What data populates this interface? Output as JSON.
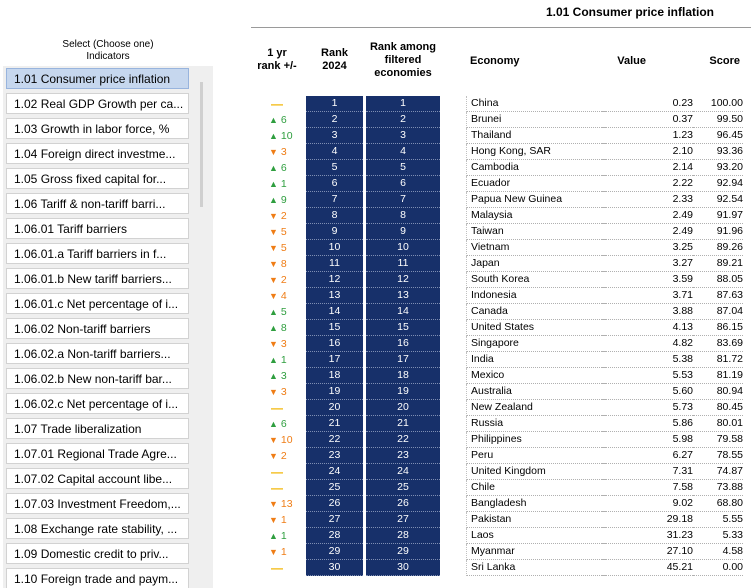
{
  "sidebar": {
    "title": "Select (Choose one)\nIndicators",
    "title_line1": "Select (Choose one)",
    "title_line2": "Indicators",
    "items": [
      {
        "label": "1.01 Consumer price inflation",
        "selected": true
      },
      {
        "label": "1.02 Real GDP Growth per ca..."
      },
      {
        "label": "1.03 Growth in labor force, %"
      },
      {
        "label": "1.04 Foreign direct investme..."
      },
      {
        "label": "1.05 Gross fixed capital for..."
      },
      {
        "label": "1.06 Tariff & non-tariff barri..."
      },
      {
        "label": "1.06.01 Tariff barriers"
      },
      {
        "label": "1.06.01.a Tariff barriers in f..."
      },
      {
        "label": "1.06.01.b New tariff barriers..."
      },
      {
        "label": "1.06.01.c Net percentage of i..."
      },
      {
        "label": "1.06.02 Non-tariff barriers"
      },
      {
        "label": "1.06.02.a Non-tariff barriers..."
      },
      {
        "label": "1.06.02.b New non-tariff bar..."
      },
      {
        "label": "1.06.02.c Net percentage of i..."
      },
      {
        "label": "1.07 Trade liberalization"
      },
      {
        "label": "1.07.01 Regional Trade Agre..."
      },
      {
        "label": "1.07.02 Capital account libe..."
      },
      {
        "label": "1.07.03 Investment Freedom,..."
      },
      {
        "label": "1.08 Exchange rate stability, ..."
      },
      {
        "label": "1.09 Domestic credit to priv..."
      },
      {
        "label": "1.10 Foreign trade and paym..."
      }
    ]
  },
  "table": {
    "title": "1.01 Consumer price inflation",
    "headers": {
      "change_l1": "1 yr",
      "change_l2": "rank +/-",
      "rank_l1": "Rank",
      "rank_l2": "2024",
      "rankf_l1": "Rank among",
      "rankf_l2": "filtered",
      "rankf_l3": "economies",
      "economy": "Economy",
      "value": "Value",
      "score": "Score"
    },
    "rows": [
      {
        "dir": "dash",
        "chg": "",
        "rank": "1",
        "rankf": "1",
        "economy": "China",
        "value": "0.23",
        "score": "100.00"
      },
      {
        "dir": "up",
        "chg": "6",
        "rank": "2",
        "rankf": "2",
        "economy": "Brunei",
        "value": "0.37",
        "score": "99.50"
      },
      {
        "dir": "up",
        "chg": "10",
        "rank": "3",
        "rankf": "3",
        "economy": "Thailand",
        "value": "1.23",
        "score": "96.45"
      },
      {
        "dir": "down",
        "chg": "3",
        "rank": "4",
        "rankf": "4",
        "economy": "Hong Kong, SAR",
        "value": "2.10",
        "score": "93.36"
      },
      {
        "dir": "up",
        "chg": "6",
        "rank": "5",
        "rankf": "5",
        "economy": "Cambodia",
        "value": "2.14",
        "score": "93.20"
      },
      {
        "dir": "up",
        "chg": "1",
        "rank": "6",
        "rankf": "6",
        "economy": "Ecuador",
        "value": "2.22",
        "score": "92.94"
      },
      {
        "dir": "up",
        "chg": "9",
        "rank": "7",
        "rankf": "7",
        "economy": "Papua New Guinea",
        "value": "2.33",
        "score": "92.54"
      },
      {
        "dir": "down",
        "chg": "2",
        "rank": "8",
        "rankf": "8",
        "economy": "Malaysia",
        "value": "2.49",
        "score": "91.97"
      },
      {
        "dir": "down",
        "chg": "5",
        "rank": "9",
        "rankf": "9",
        "economy": "Taiwan",
        "value": "2.49",
        "score": "91.96"
      },
      {
        "dir": "down",
        "chg": "5",
        "rank": "10",
        "rankf": "10",
        "economy": "Vietnam",
        "value": "3.25",
        "score": "89.26"
      },
      {
        "dir": "down",
        "chg": "8",
        "rank": "11",
        "rankf": "11",
        "economy": "Japan",
        "value": "3.27",
        "score": "89.21"
      },
      {
        "dir": "down",
        "chg": "2",
        "rank": "12",
        "rankf": "12",
        "economy": "South Korea",
        "value": "3.59",
        "score": "88.05"
      },
      {
        "dir": "down",
        "chg": "4",
        "rank": "13",
        "rankf": "13",
        "economy": "Indonesia",
        "value": "3.71",
        "score": "87.63"
      },
      {
        "dir": "up",
        "chg": "5",
        "rank": "14",
        "rankf": "14",
        "economy": "Canada",
        "value": "3.88",
        "score": "87.04"
      },
      {
        "dir": "up",
        "chg": "8",
        "rank": "15",
        "rankf": "15",
        "economy": "United States",
        "value": "4.13",
        "score": "86.15"
      },
      {
        "dir": "down",
        "chg": "3",
        "rank": "16",
        "rankf": "16",
        "economy": "Singapore",
        "value": "4.82",
        "score": "83.69"
      },
      {
        "dir": "up",
        "chg": "1",
        "rank": "17",
        "rankf": "17",
        "economy": "India",
        "value": "5.38",
        "score": "81.72"
      },
      {
        "dir": "up",
        "chg": "3",
        "rank": "18",
        "rankf": "18",
        "economy": "Mexico",
        "value": "5.53",
        "score": "81.19"
      },
      {
        "dir": "down",
        "chg": "3",
        "rank": "19",
        "rankf": "19",
        "economy": "Australia",
        "value": "5.60",
        "score": "80.94"
      },
      {
        "dir": "dash",
        "chg": "",
        "rank": "20",
        "rankf": "20",
        "economy": "New Zealand",
        "value": "5.73",
        "score": "80.45"
      },
      {
        "dir": "up",
        "chg": "6",
        "rank": "21",
        "rankf": "21",
        "economy": "Russia",
        "value": "5.86",
        "score": "80.01"
      },
      {
        "dir": "down",
        "chg": "10",
        "rank": "22",
        "rankf": "22",
        "economy": "Philippines",
        "value": "5.98",
        "score": "79.58"
      },
      {
        "dir": "down",
        "chg": "2",
        "rank": "23",
        "rankf": "23",
        "economy": "Peru",
        "value": "6.27",
        "score": "78.55"
      },
      {
        "dir": "dash",
        "chg": "",
        "rank": "24",
        "rankf": "24",
        "economy": "United Kingdom",
        "value": "7.31",
        "score": "74.87"
      },
      {
        "dir": "dash",
        "chg": "",
        "rank": "25",
        "rankf": "25",
        "economy": "Chile",
        "value": "7.58",
        "score": "73.88"
      },
      {
        "dir": "down",
        "chg": "13",
        "rank": "26",
        "rankf": "26",
        "economy": "Bangladesh",
        "value": "9.02",
        "score": "68.80"
      },
      {
        "dir": "down",
        "chg": "1",
        "rank": "27",
        "rankf": "27",
        "economy": "Pakistan",
        "value": "29.18",
        "score": "5.55"
      },
      {
        "dir": "up",
        "chg": "1",
        "rank": "28",
        "rankf": "28",
        "economy": "Laos",
        "value": "31.23",
        "score": "5.33"
      },
      {
        "dir": "down",
        "chg": "1",
        "rank": "29",
        "rankf": "29",
        "economy": "Myanmar",
        "value": "27.10",
        "score": "4.58"
      },
      {
        "dir": "dash",
        "chg": "",
        "rank": "30",
        "rankf": "30",
        "economy": "Sri Lanka",
        "value": "45.21",
        "score": "0.00"
      }
    ]
  },
  "colors": {
    "rank_fill": "#17306a",
    "up": "#2f9e3f",
    "down": "#ef7d16",
    "no_change": "#f2b400",
    "selected_item": "#c6d7ee"
  },
  "icons": {
    "up": "triangle-up-icon",
    "down": "triangle-down-icon",
    "no_change": "dash-icon"
  }
}
